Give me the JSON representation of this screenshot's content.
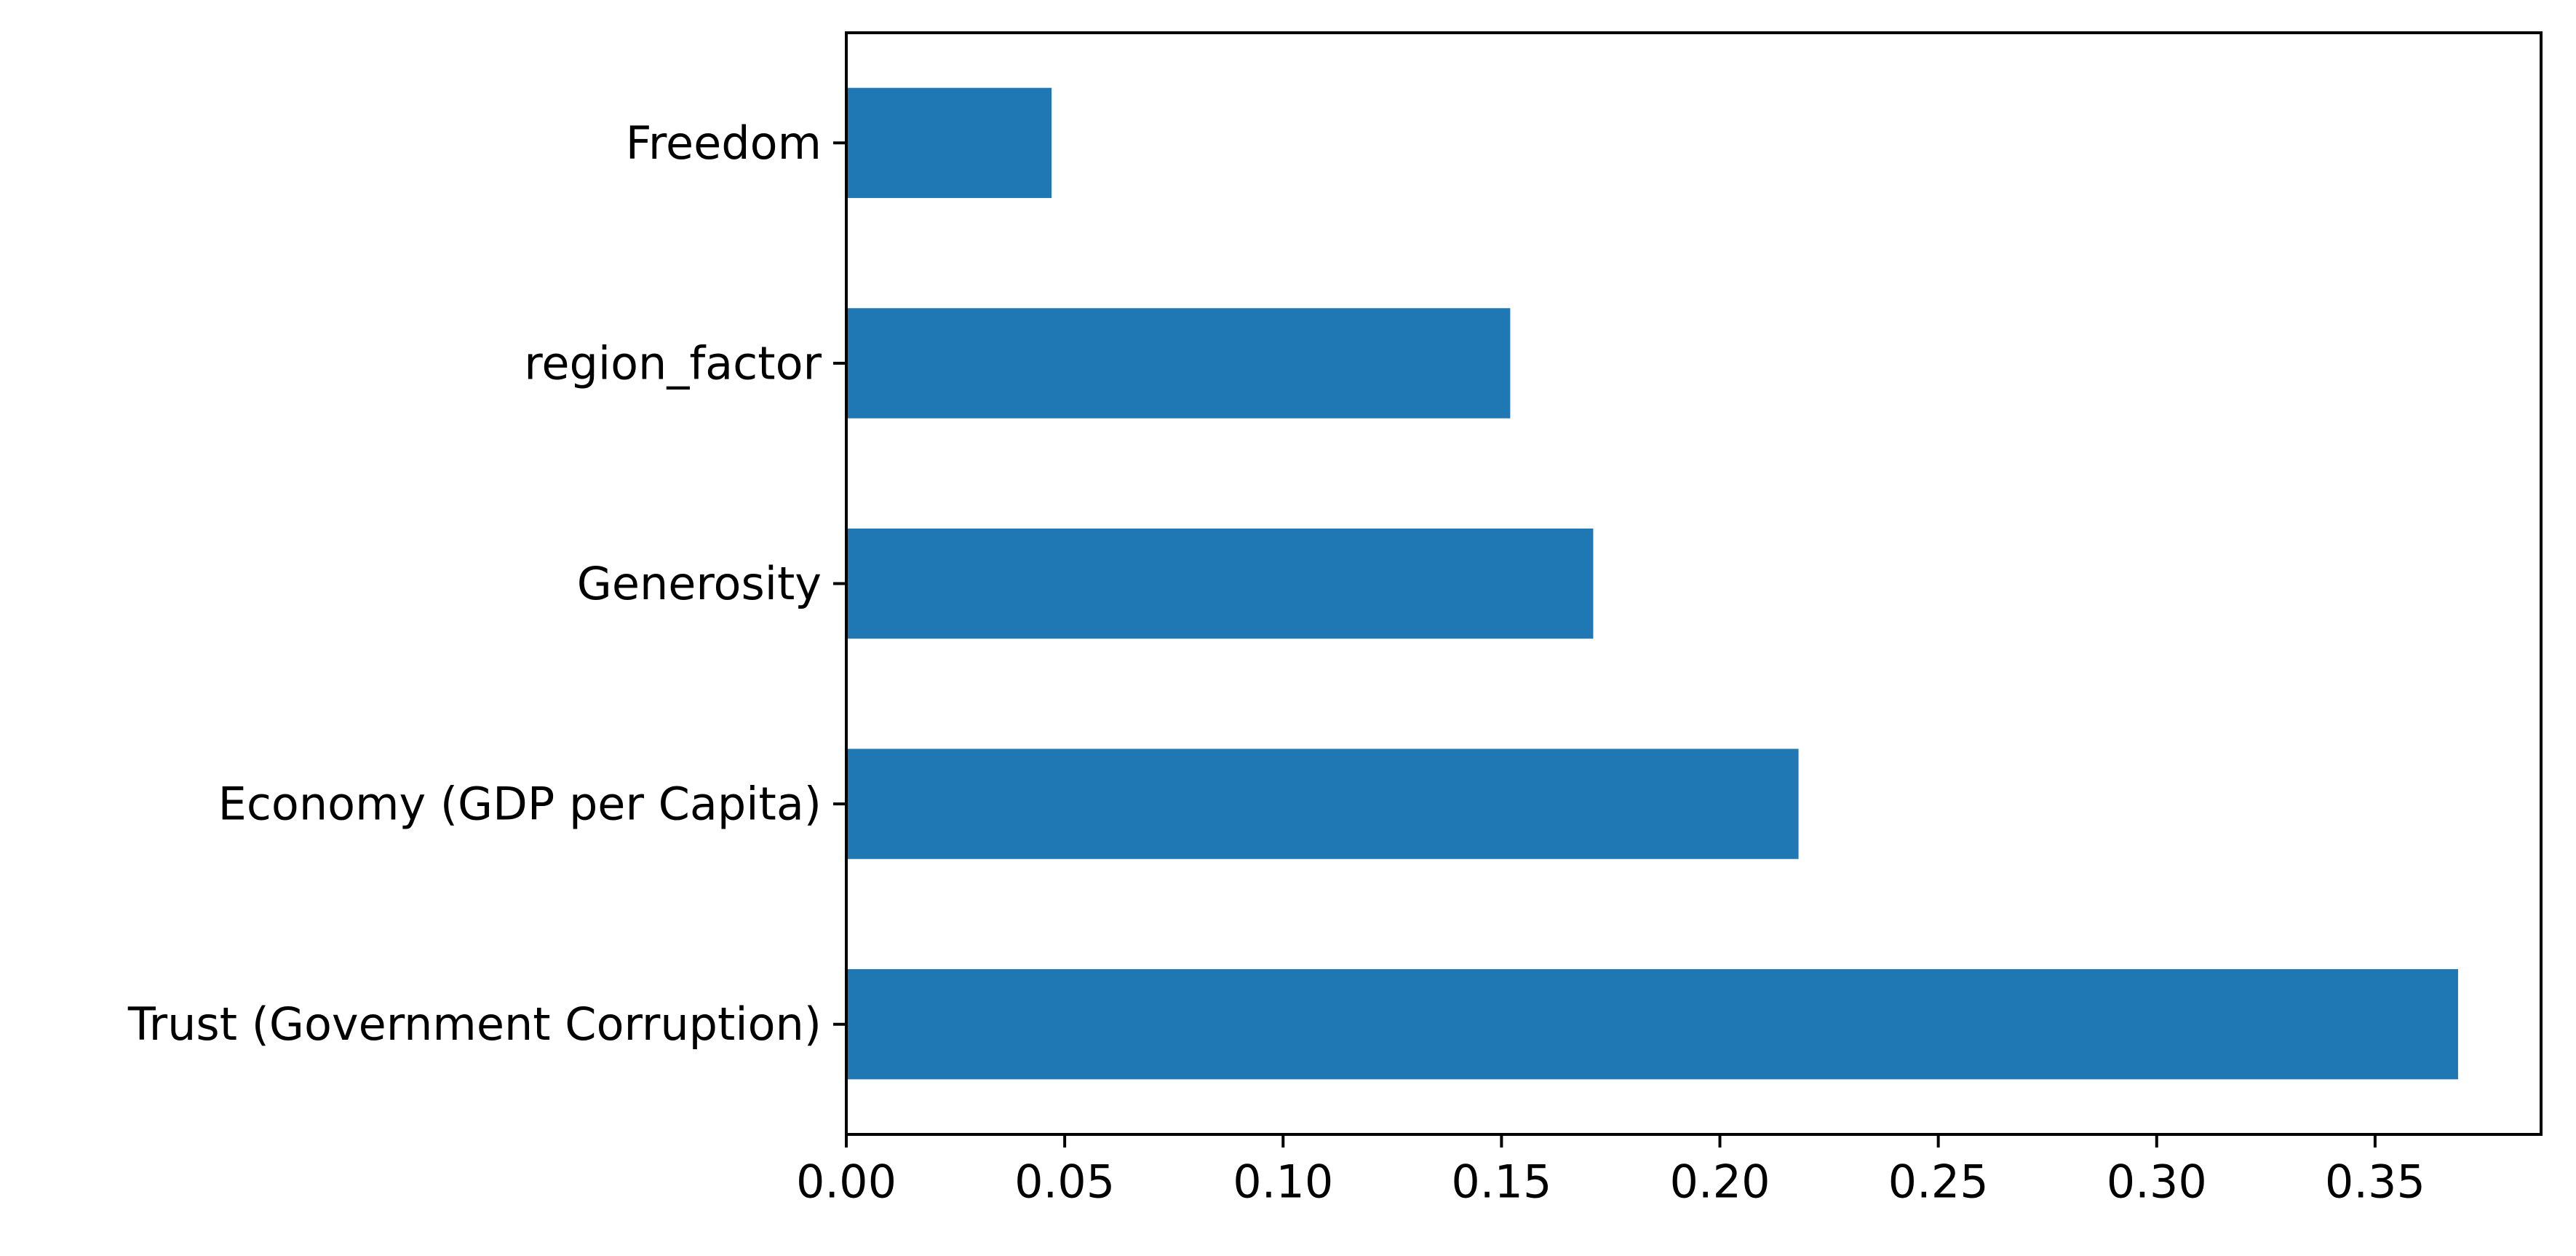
{
  "chart_data": {
    "type": "bar",
    "orientation": "horizontal",
    "categories": [
      "Trust (Government Corruption)",
      "Economy (GDP per Capita)",
      "Generosity",
      "region_factor",
      "Freedom"
    ],
    "values": [
      0.369,
      0.218,
      0.171,
      0.152,
      0.047
    ],
    "xlim": [
      0,
      0.388
    ],
    "xticks": [
      0.0,
      0.05,
      0.1,
      0.15,
      0.2,
      0.25,
      0.3,
      0.35
    ],
    "xtick_labels": [
      "0.00",
      "0.05",
      "0.10",
      "0.15",
      "0.20",
      "0.25",
      "0.30",
      "0.35"
    ],
    "title": "",
    "xlabel": "",
    "ylabel": "",
    "grid": false,
    "legend": "none",
    "bar_color": "#1f77b4",
    "axis_color": "#000000"
  }
}
